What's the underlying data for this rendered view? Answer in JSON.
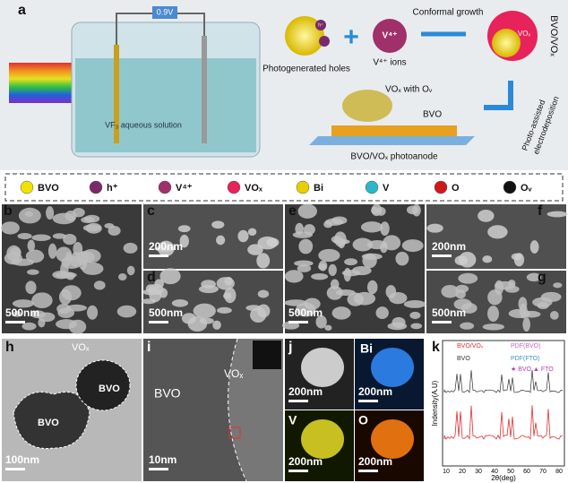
{
  "panel_a": {
    "letter": "a",
    "voltage": "0.9V",
    "solution": "VF₃ aqueous solution",
    "holes": "Photogenerated holes",
    "hplus": "h⁺",
    "v4": "V⁴⁺",
    "v4_ions": "V⁴⁺ ions",
    "conformal": "Conformal growth",
    "vox": "VOₓ",
    "bvo_vox": "BVO/VOₓ",
    "vox_ov": "VOₓ with Oᵥ",
    "bvo": "BVO",
    "photoanode": "BVO/VOₓ  photoanode",
    "photo_assisted": "Photo-assisted",
    "electrodeposition": "electrodeposition"
  },
  "legend": [
    {
      "label": "BVO",
      "color": "#f2e200"
    },
    {
      "label": "h⁺",
      "color": "#7a2a6a"
    },
    {
      "label": "V⁴⁺",
      "color": "#a0306a"
    },
    {
      "label": "VOₓ",
      "color": "#e8225a"
    },
    {
      "label": "Bi",
      "color": "#e8d000"
    },
    {
      "label": "V",
      "color": "#2ab8c8"
    },
    {
      "label": "O",
      "color": "#d01818"
    },
    {
      "label": "Oᵥ",
      "color": "#111111"
    }
  ],
  "panels": {
    "b": {
      "letter": "b",
      "scale": "500nm"
    },
    "c": {
      "letter": "c",
      "scale": "200nm"
    },
    "d": {
      "letter": "d",
      "scale": "500nm"
    },
    "e": {
      "letter": "e",
      "scale": "500nm"
    },
    "f": {
      "letter": "f",
      "scale": "200nm"
    },
    "g": {
      "letter": "g",
      "scale": "500nm"
    },
    "h": {
      "letter": "h",
      "scale": "100nm",
      "vox": "VOₓ",
      "bvo1": "BVO",
      "bvo2": "BVO"
    },
    "i": {
      "letter": "i",
      "scale": "10nm",
      "bvo": "BVO",
      "vox": "VOₓ"
    },
    "j": {
      "letter": "j",
      "scale1": "200nm",
      "scale2": "200nm",
      "scale3": "200nm",
      "scale4": "200nm",
      "bi": "Bi",
      "v": "V",
      "o": "O"
    },
    "k": {
      "letter": "k",
      "legend1": "BVO/VOₓ",
      "legend2": "BVO",
      "legend3": "PDF(BVO)",
      "legend4": "PDF(FTO)",
      "legend5": "★ BVO ▲ FTO",
      "ylabel": "Indensity(A.U)",
      "xlabel": "2θ(deg)",
      "xticks": [
        "10",
        "20",
        "30",
        "40",
        "50",
        "60",
        "70",
        "80"
      ]
    }
  }
}
